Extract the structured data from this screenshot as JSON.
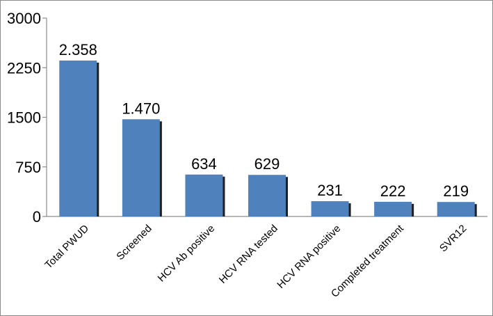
{
  "chart_data": {
    "type": "bar",
    "categories": [
      "Total PWUD",
      "Screened",
      "HCV Ab positive",
      "HCV RNA tested",
      "HCV RNA positive",
      "Completed treatment",
      "SVR12"
    ],
    "values": [
      2358,
      1470,
      634,
      629,
      231,
      222,
      219
    ],
    "data_labels": [
      "2.358",
      "1.470",
      "634",
      "629",
      "231",
      "222",
      "219"
    ],
    "yticks": [
      0,
      750,
      1500,
      2250,
      3000
    ],
    "ytick_labels": [
      "0",
      "750",
      "1500",
      "2250",
      "3000"
    ],
    "ylim": [
      0,
      3000
    ],
    "grid": false,
    "legend": "none",
    "bar_color": "#4f81bd",
    "bar_shadow_color": "#1f1f1f"
  }
}
